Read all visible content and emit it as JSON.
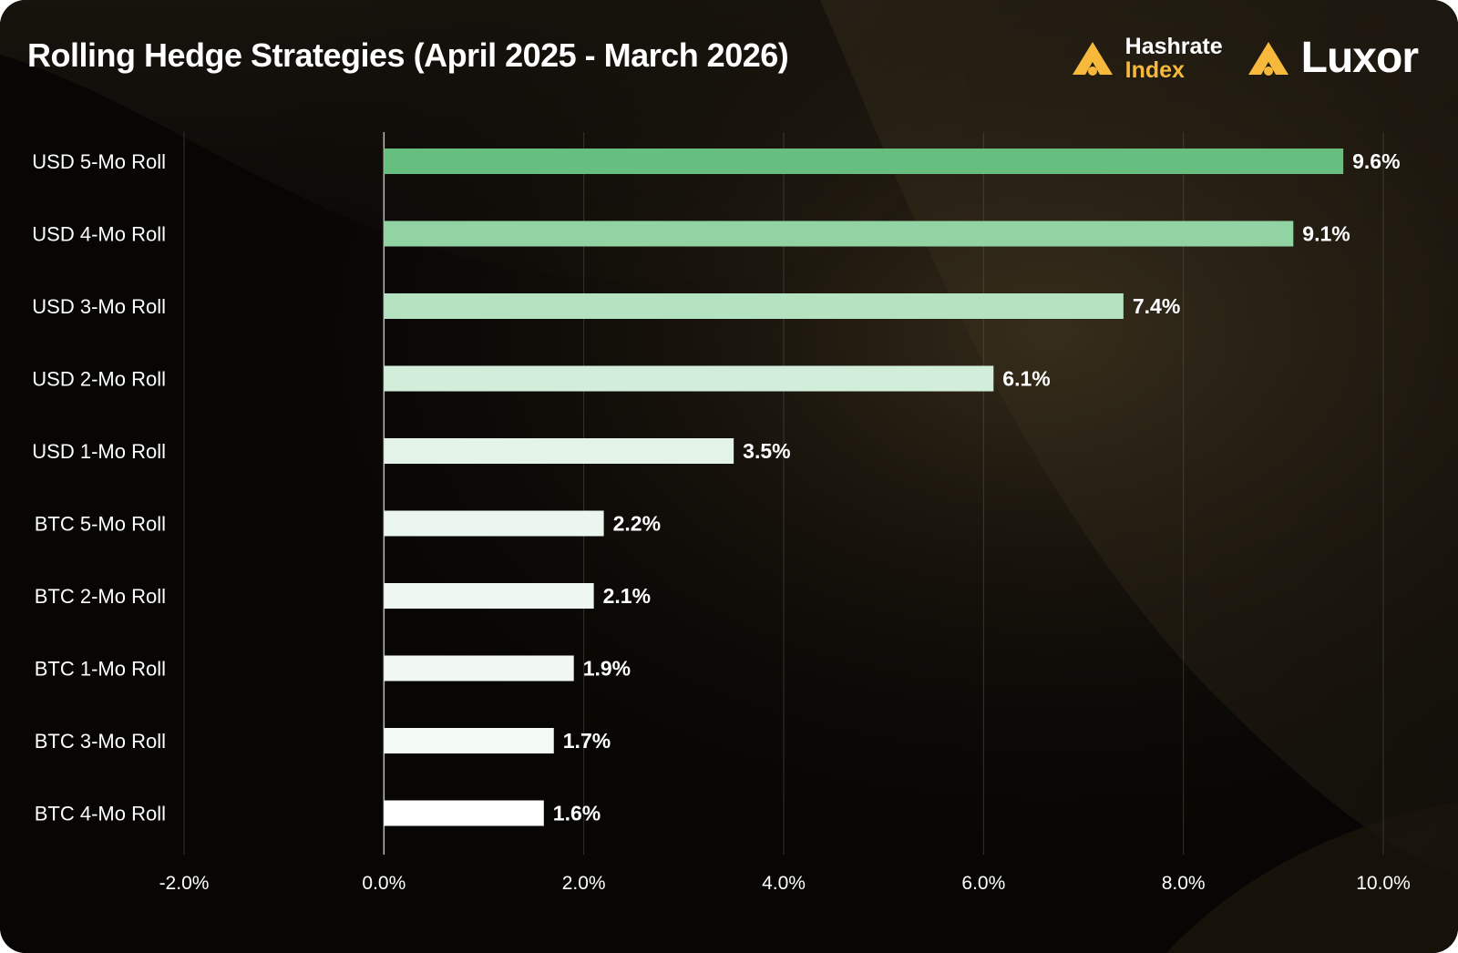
{
  "header": {
    "title": "Rolling Hedge Strategies (April 2025 - March 2026)",
    "logos": {
      "hashrate_index": {
        "icon": "hashrate-index-logo-icon",
        "line1": "Hashrate",
        "line2": "Index"
      },
      "luxor": {
        "icon": "luxor-logo-icon",
        "name": "Luxor"
      }
    }
  },
  "colors": {
    "accent": "#f6b93b",
    "background": "#070604",
    "bars": [
      "#66bf7e",
      "#92d3a3",
      "#b5e2c0",
      "#d3eddb",
      "#e3f3e8",
      "#eaf6ee",
      "#eef7f1",
      "#f1f8f4",
      "#f4faf6",
      "#ffffff"
    ]
  },
  "chart_data": {
    "type": "bar",
    "orientation": "horizontal",
    "title": "Rolling Hedge Strategies (April 2025 - March 2026)",
    "categories": [
      "USD 5-Mo Roll",
      "USD 4-Mo Roll",
      "USD 3-Mo Roll",
      "USD 2-Mo Roll",
      "USD 1-Mo Roll",
      "BTC 5-Mo Roll",
      "BTC 2-Mo Roll",
      "BTC 1-Mo Roll",
      "BTC 3-Mo Roll",
      "BTC 4-Mo Roll"
    ],
    "values": [
      9.6,
      9.1,
      7.4,
      6.1,
      3.5,
      2.2,
      2.1,
      1.9,
      1.7,
      1.6
    ],
    "value_labels": [
      "9.6%",
      "9.1%",
      "7.4%",
      "6.1%",
      "3.5%",
      "2.2%",
      "2.1%",
      "1.9%",
      "1.7%",
      "1.6%"
    ],
    "xlim": [
      -2,
      10
    ],
    "xticks": [
      -2,
      0,
      2,
      4,
      6,
      8,
      10
    ],
    "xtick_labels": [
      "-2.0%",
      "0.0%",
      "2.0%",
      "4.0%",
      "6.0%",
      "8.0%",
      "10.0%"
    ],
    "grid": true,
    "legend": "none"
  }
}
